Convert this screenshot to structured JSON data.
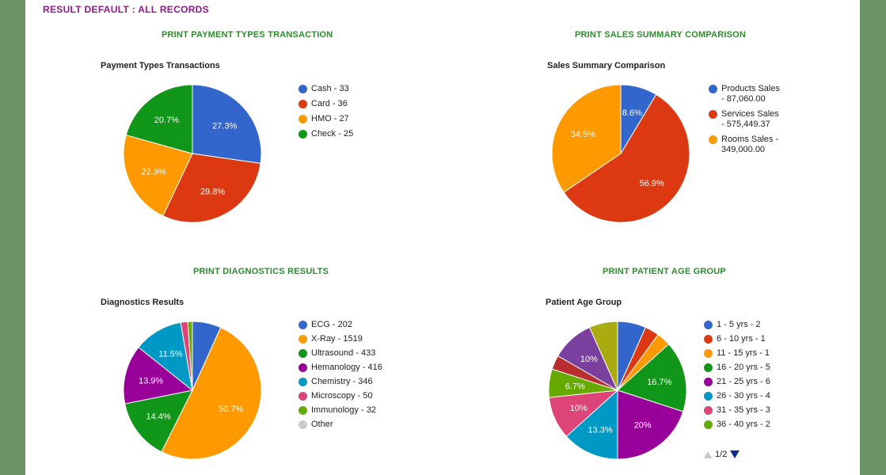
{
  "result_title": "RESULT DEFAULT : ALL RECORDS",
  "chart_data": [
    {
      "id": "payment",
      "type": "pie",
      "link": "PRINT PAYMENT TYPES TRANSACTION",
      "title": "Payment Types Transactions",
      "start_angle": 0,
      "slices": [
        {
          "label": "Cash - 33",
          "value": 33,
          "pct": "27.3%",
          "color": "#3366cc"
        },
        {
          "label": "Card - 36",
          "value": 36,
          "pct": "29.8%",
          "color": "#dc3912"
        },
        {
          "label": "HMO - 27",
          "value": 27,
          "pct": "22.3%",
          "color": "#ff9900"
        },
        {
          "label": "Check - 25",
          "value": 25,
          "pct": "20.7%",
          "color": "#109618"
        }
      ]
    },
    {
      "id": "sales",
      "type": "pie",
      "link": "PRINT SALES SUMMARY COMPARISON",
      "title": "Sales Summary Comparison",
      "start_angle": 0,
      "slices": [
        {
          "label": "Products Sales\n- 87,060.00",
          "value": 87060,
          "pct": "8.6%",
          "color": "#3366cc"
        },
        {
          "label": "Services Sales\n- 575,449.37",
          "value": 575449.37,
          "pct": "56.9%",
          "color": "#dc3912"
        },
        {
          "label": "Rooms Sales -\n349,000.00",
          "value": 349000,
          "pct": "34.5%",
          "color": "#ff9900"
        }
      ]
    },
    {
      "id": "diagnostics",
      "type": "pie",
      "link": "PRINT DIAGNOSTICS RESULTS",
      "title": "Diagnostics Results",
      "start_angle": 0,
      "slices": [
        {
          "label": "ECG - 202",
          "value": 202,
          "pct": "",
          "color": "#3366cc"
        },
        {
          "label": "X-Ray - 1519",
          "value": 1519,
          "pct": "50.7%",
          "color": "#ff9900"
        },
        {
          "label": "Ultrasound - 433",
          "value": 433,
          "pct": "14.4%",
          "color": "#109618"
        },
        {
          "label": "Hemanology - 416",
          "value": 416,
          "pct": "13.9%",
          "color": "#990099"
        },
        {
          "label": "Chemistry - 346",
          "value": 346,
          "pct": "11.5%",
          "color": "#0099c6"
        },
        {
          "label": "Microscopy - 50",
          "value": 50,
          "pct": "",
          "color": "#dd4477"
        },
        {
          "label": "Immunology - 32",
          "value": 32,
          "pct": "",
          "color": "#66aa00"
        },
        {
          "label": "Other",
          "value": 0,
          "pct": "",
          "color": "#cccccc"
        }
      ]
    },
    {
      "id": "age",
      "type": "pie",
      "link": "PRINT PATIENT AGE GROUP",
      "title": "Patient Age Group",
      "start_angle": 0,
      "pager": "1/2",
      "slices": [
        {
          "label": "1 - 5 yrs - 2",
          "value": 2,
          "pct": "",
          "color": "#3366cc"
        },
        {
          "label": "6 - 10 yrs - 1",
          "value": 1,
          "pct": "",
          "color": "#dc3912"
        },
        {
          "label": "11 - 15 yrs - 1",
          "value": 1,
          "pct": "",
          "color": "#ff9900"
        },
        {
          "label": "16 - 20 yrs - 5",
          "value": 5,
          "pct": "16.7%",
          "color": "#109618"
        },
        {
          "label": "21 - 25 yrs - 6",
          "value": 6,
          "pct": "20%",
          "color": "#990099"
        },
        {
          "label": "26 - 30 yrs - 4",
          "value": 4,
          "pct": "13.3%",
          "color": "#0099c6"
        },
        {
          "label": "31 - 35 yrs - 3",
          "value": 3,
          "pct": "10%",
          "color": "#dd4477"
        },
        {
          "label": "36 - 40 yrs - 2",
          "value": 2,
          "pct": "6.7%",
          "color": "#66aa00"
        },
        {
          "label": "",
          "value": 1,
          "pct": "",
          "color": "#b82e2e",
          "legend": false
        },
        {
          "label": "",
          "value": 3,
          "pct": "10%",
          "color": "#7b3fa0",
          "legend": false
        },
        {
          "label": "",
          "value": 2,
          "pct": "",
          "color": "#aaaa11",
          "legend": false
        }
      ]
    }
  ]
}
